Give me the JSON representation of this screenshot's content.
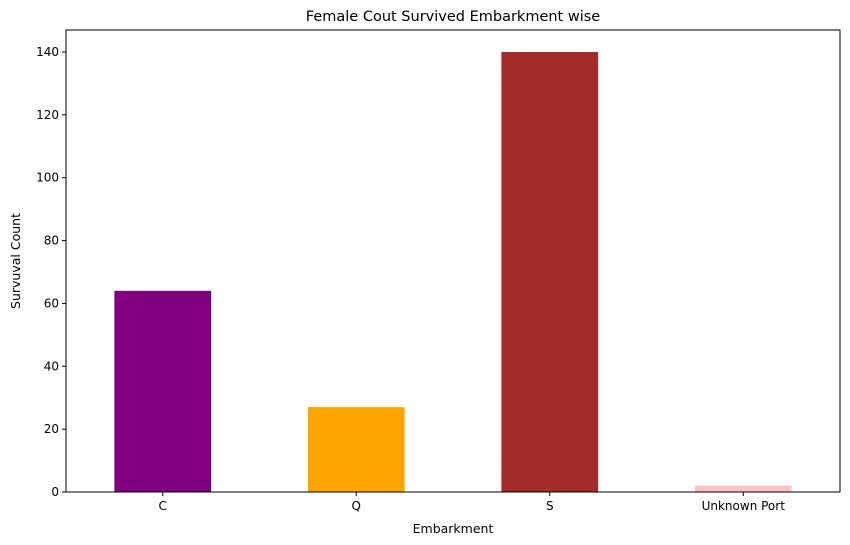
{
  "chart_data": {
    "type": "bar",
    "title": "Female Cout Survived Embarkment wise",
    "xlabel": "Embarkment",
    "ylabel": "Survuval Count",
    "categories": [
      "C",
      "Q",
      "S",
      "Unknown Port"
    ],
    "values": [
      64,
      27,
      140,
      2
    ],
    "colors": [
      "#800080",
      "#ffa500",
      "#a52a2a",
      "#ffc0cb"
    ],
    "ylim": [
      0,
      147
    ],
    "yticks": [
      0,
      20,
      40,
      60,
      80,
      100,
      120,
      140
    ],
    "grid": false,
    "legend": "none"
  }
}
